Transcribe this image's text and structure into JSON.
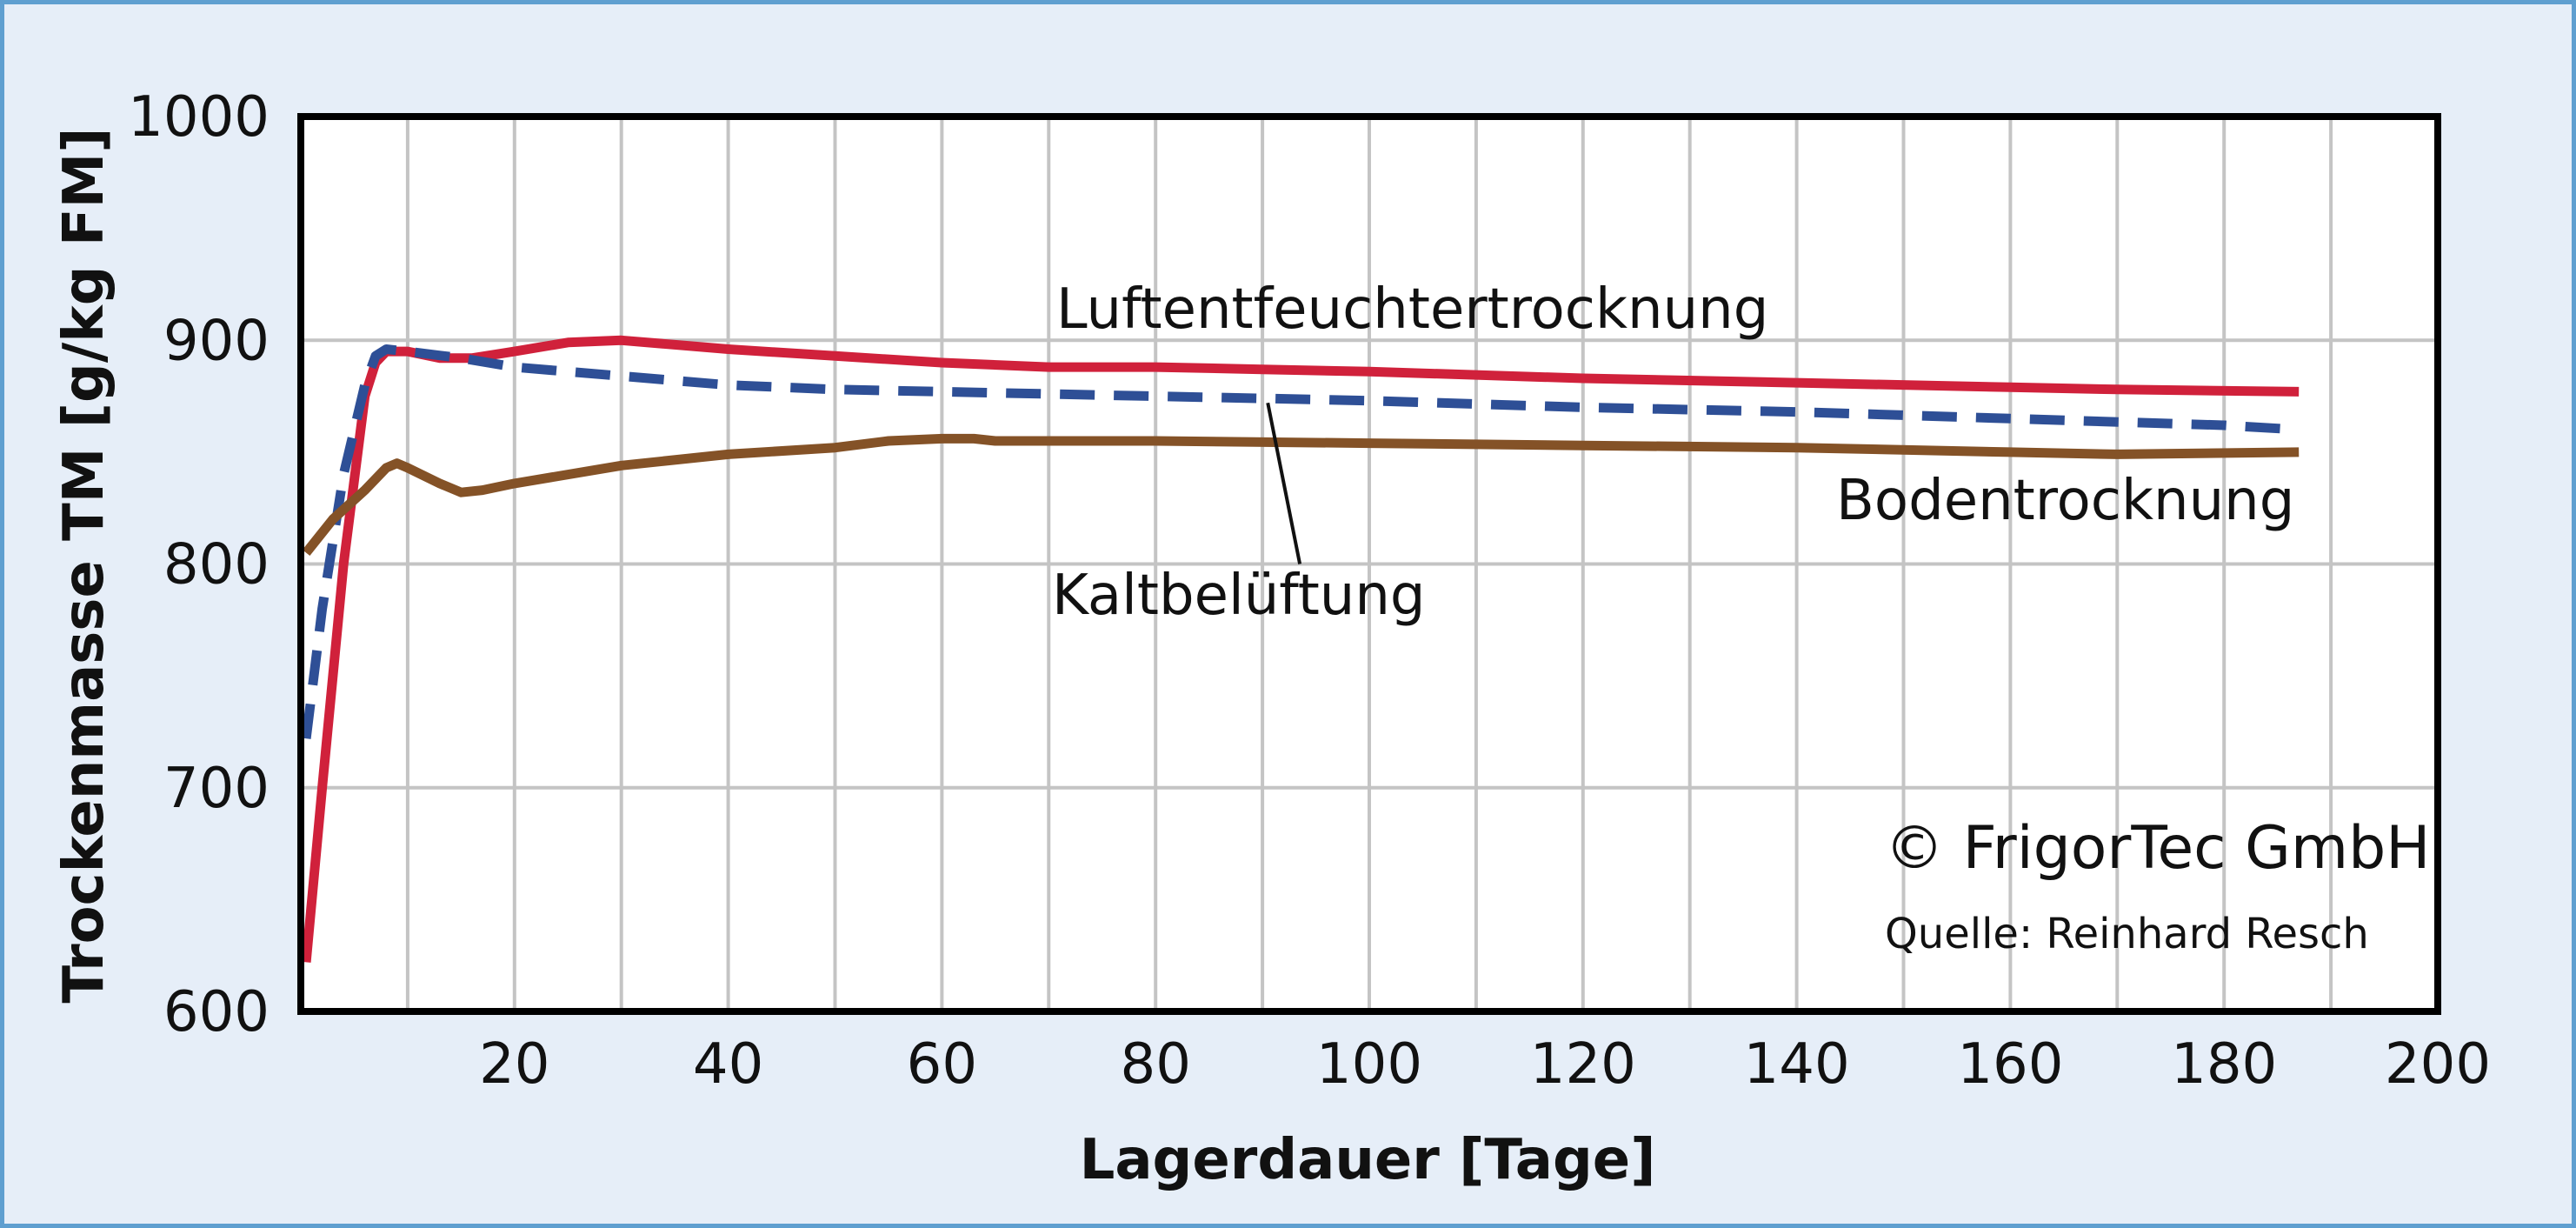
{
  "colors": {
    "background": "#e6eef8",
    "frame_border": "#5f9fd0",
    "plot_background": "#ffffff",
    "grid": "#c4c4c4",
    "plot_border": "#000000"
  },
  "chart_data": {
    "type": "line",
    "xlabel": "Lagerdauer [Tage]",
    "ylabel": "Trockenmasse TM [g/kg FM]",
    "xlim": [
      0,
      200
    ],
    "ylim": [
      600,
      1000
    ],
    "x_ticks": [
      20,
      40,
      60,
      80,
      100,
      120,
      140,
      160,
      180,
      200
    ],
    "y_ticks": [
      600,
      700,
      800,
      900,
      1000
    ],
    "grid": true,
    "x_grid_step": 10,
    "y_grid_step": 100,
    "series": [
      {
        "name": "Luftentfeuchtertrocknung",
        "color": "#d0213b",
        "style": "solid",
        "x": [
          0.5,
          2,
          4,
          6,
          7,
          8,
          10,
          13,
          16,
          20,
          25,
          30,
          35,
          40,
          50,
          60,
          70,
          80,
          90,
          100,
          120,
          140,
          160,
          170,
          187
        ],
        "y": [
          622,
          700,
          800,
          875,
          890,
          895,
          895,
          892,
          892,
          895,
          899,
          900,
          898,
          896,
          893,
          890,
          888,
          888,
          887,
          886,
          883,
          881,
          879,
          878,
          877
        ]
      },
      {
        "name": "Kaltbelüftung",
        "color": "#2e4f96",
        "style": "dashed",
        "x": [
          0.5,
          2,
          4,
          6,
          7,
          8,
          10,
          15,
          20,
          30,
          40,
          50,
          60,
          70,
          80,
          90,
          100,
          120,
          140,
          160,
          180,
          187
        ],
        "y": [
          722,
          780,
          840,
          880,
          893,
          896,
          895,
          892,
          888,
          884,
          880,
          878,
          877,
          876,
          875,
          874,
          873,
          870,
          868,
          865,
          862,
          860
        ]
      },
      {
        "name": "Bodentrocknung",
        "color": "#845227",
        "style": "solid",
        "x": [
          0.5,
          3,
          6,
          8,
          9,
          10,
          13,
          15,
          17,
          20,
          30,
          40,
          50,
          55,
          60,
          63,
          65,
          80,
          100,
          120,
          140,
          160,
          170,
          187
        ],
        "y": [
          805,
          820,
          833,
          843,
          845,
          843,
          836,
          832,
          833,
          836,
          844,
          849,
          852,
          855,
          856,
          856,
          855,
          855,
          854,
          853,
          852,
          850,
          849,
          850
        ]
      }
    ],
    "annotations": {
      "luft_label": "Luftentfeuchtertrocknung",
      "kalt_label": "Kaltbelüftung",
      "boden_label": "Bodentrocknung",
      "copyright": "© FrigorTec GmbH",
      "source": "Quelle: Reinhard Resch"
    }
  }
}
